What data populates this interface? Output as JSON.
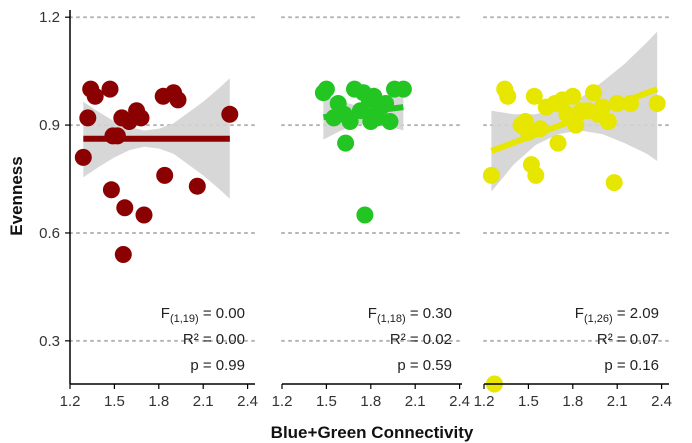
{
  "chart_data": {
    "type": "scatter",
    "xlabel": "Blue+Green Connectivity",
    "ylabel": "Evenness",
    "y_ticks": [
      "0.3",
      "0.6",
      "0.9",
      "1.2"
    ],
    "y_tick_values": [
      0.3,
      0.6,
      0.9,
      1.2
    ],
    "x_ticks": [
      "1.2",
      "1.5",
      "1.8",
      "2.1",
      "2.4"
    ],
    "x_tick_values": [
      1.2,
      1.5,
      1.8,
      2.1,
      2.4
    ],
    "xlim": [
      1.2,
      2.4
    ],
    "ylim": [
      0.18,
      1.22
    ],
    "grid": "horizontal dotted",
    "panels": [
      {
        "color": "#8b0000",
        "band_color": "#d3d3d3",
        "points": [
          [
            1.29,
            0.81
          ],
          [
            1.32,
            0.92
          ],
          [
            1.34,
            1.0
          ],
          [
            1.37,
            0.98
          ],
          [
            1.47,
            1.0
          ],
          [
            1.48,
            0.72
          ],
          [
            1.49,
            0.87
          ],
          [
            1.52,
            0.87
          ],
          [
            1.55,
            0.92
          ],
          [
            1.56,
            0.54
          ],
          [
            1.57,
            0.67
          ],
          [
            1.6,
            0.91
          ],
          [
            1.65,
            0.94
          ],
          [
            1.68,
            0.92
          ],
          [
            1.7,
            0.65
          ],
          [
            1.83,
            0.98
          ],
          [
            1.84,
            0.76
          ],
          [
            1.9,
            0.99
          ],
          [
            1.93,
            0.97
          ],
          [
            2.06,
            0.73
          ],
          [
            2.28,
            0.93
          ]
        ],
        "fit": {
          "x": [
            1.29,
            2.28
          ],
          "y": [
            0.862,
            0.862
          ]
        },
        "band": {
          "x": [
            1.29,
            1.4,
            1.5,
            1.6,
            1.7,
            1.8,
            1.9,
            2.0,
            2.1,
            2.2,
            2.28
          ],
          "lower": [
            0.755,
            0.785,
            0.81,
            0.83,
            0.84,
            0.835,
            0.82,
            0.79,
            0.76,
            0.725,
            0.695
          ],
          "upper": [
            0.965,
            0.935,
            0.91,
            0.895,
            0.885,
            0.89,
            0.905,
            0.935,
            0.965,
            1.0,
            1.03
          ]
        },
        "stats": {
          "f_prefix": "F",
          "f_sub": "(1,19)",
          "f_value": " = 0.00",
          "r2": "R² = 0.00",
          "p": "p = 0.99"
        }
      },
      {
        "color": "#22c522",
        "band_color": "#d3d3d3",
        "points": [
          [
            1.48,
            0.99
          ],
          [
            1.5,
            1.0
          ],
          [
            1.55,
            0.92
          ],
          [
            1.58,
            0.96
          ],
          [
            1.62,
            0.93
          ],
          [
            1.63,
            0.85
          ],
          [
            1.66,
            0.91
          ],
          [
            1.69,
            1.0
          ],
          [
            1.73,
            0.94
          ],
          [
            1.75,
            0.99
          ],
          [
            1.76,
            0.65
          ],
          [
            1.79,
            0.97
          ],
          [
            1.8,
            0.91
          ],
          [
            1.82,
            0.98
          ],
          [
            1.84,
            0.92
          ],
          [
            1.87,
            0.95
          ],
          [
            1.9,
            0.96
          ],
          [
            1.93,
            0.91
          ],
          [
            1.96,
            1.0
          ],
          [
            2.02,
            1.0
          ]
        ],
        "fit": {
          "x": [
            1.48,
            2.02
          ],
          "y": [
            0.922,
            0.95
          ]
        },
        "band": {
          "x": [
            1.48,
            1.6,
            1.7,
            1.8,
            1.9,
            2.02
          ],
          "lower": [
            0.86,
            0.885,
            0.9,
            0.905,
            0.9,
            0.885
          ],
          "upper": [
            0.985,
            0.965,
            0.955,
            0.96,
            0.98,
            1.015
          ]
        },
        "stats": {
          "f_prefix": "F",
          "f_sub": "(1,18)",
          "f_value": " = 0.30",
          "r2": "R² = 0.02",
          "p": "p = 0.59"
        }
      },
      {
        "color": "#e6e600",
        "band_color": "#d3d3d3",
        "points": [
          [
            1.25,
            0.76
          ],
          [
            1.27,
            0.18
          ],
          [
            1.34,
            1.0
          ],
          [
            1.36,
            0.98
          ],
          [
            1.45,
            0.9
          ],
          [
            1.48,
            0.91
          ],
          [
            1.5,
            0.88
          ],
          [
            1.52,
            0.79
          ],
          [
            1.54,
            0.98
          ],
          [
            1.55,
            0.76
          ],
          [
            1.58,
            0.89
          ],
          [
            1.62,
            0.95
          ],
          [
            1.68,
            0.96
          ],
          [
            1.7,
            0.85
          ],
          [
            1.73,
            0.97
          ],
          [
            1.76,
            0.93
          ],
          [
            1.8,
            0.98
          ],
          [
            1.82,
            0.9
          ],
          [
            1.86,
            0.94
          ],
          [
            1.9,
            0.94
          ],
          [
            1.94,
            0.99
          ],
          [
            1.97,
            0.93
          ],
          [
            2.0,
            0.95
          ],
          [
            2.04,
            0.91
          ],
          [
            2.08,
            0.74
          ],
          [
            2.1,
            0.96
          ],
          [
            2.19,
            0.96
          ],
          [
            2.37,
            0.96
          ]
        ],
        "fit": {
          "x": [
            1.25,
            2.37
          ],
          "y": [
            0.828,
            1.0
          ]
        },
        "band": {
          "x": [
            1.25,
            1.4,
            1.55,
            1.7,
            1.85,
            2.0,
            2.15,
            2.3,
            2.37
          ],
          "lower": [
            0.715,
            0.79,
            0.845,
            0.875,
            0.885,
            0.875,
            0.85,
            0.82,
            0.8
          ],
          "upper": [
            0.94,
            0.93,
            0.93,
            0.945,
            0.975,
            1.02,
            1.07,
            1.13,
            1.16
          ]
        },
        "stats": {
          "f_prefix": "F",
          "f_sub": "(1,26)",
          "f_value": " = 2.09",
          "r2": "R² = 0.07",
          "p": "p = 0.16"
        }
      }
    ]
  }
}
